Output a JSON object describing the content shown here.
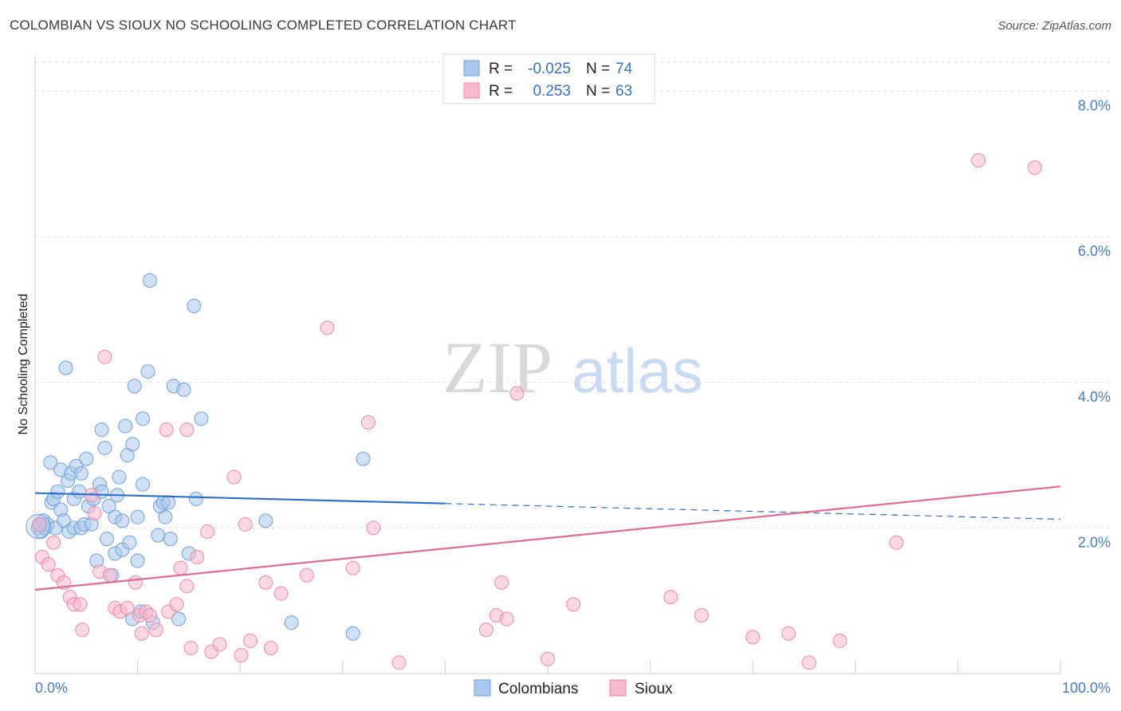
{
  "title": "COLOMBIAN VS SIOUX NO SCHOOLING COMPLETED CORRELATION CHART",
  "source": "Source: ZipAtlas.com",
  "watermark": {
    "zip": "ZIP",
    "atlas": "atlas"
  },
  "colors": {
    "colombians_fill": "#a9c8ef",
    "colombians_stroke": "#6f9fd8",
    "colombians_line": "#2a6fcf",
    "sioux_fill": "#f7b8cc",
    "sioux_stroke": "#e889a8",
    "sioux_line": "#e06a94",
    "tick": "#4a7cc7"
  },
  "legend_top": {
    "rows": [
      {
        "r_label": "R =",
        "r_value": "-0.025",
        "n_label": "N =",
        "n_value": "74"
      },
      {
        "r_label": "R =",
        "r_value": "0.253",
        "n_label": "N =",
        "n_value": "63"
      }
    ]
  },
  "legend_bottom": {
    "colombians": "Colombians",
    "sioux": "Sioux"
  },
  "chart_data": {
    "type": "scatter",
    "title": "COLOMBIAN VS SIOUX NO SCHOOLING COMPLETED CORRELATION CHART",
    "xlabel": "",
    "ylabel": "No Schooling Completed",
    "xlim": [
      0,
      100
    ],
    "ylim": [
      0,
      8.4
    ],
    "x_tick_labels": [
      "0.0%",
      "100.0%"
    ],
    "y_ticks": [
      2,
      4,
      6,
      8
    ],
    "y_tick_labels": [
      "2.0%",
      "4.0%",
      "6.0%",
      "8.0%"
    ],
    "series": [
      {
        "name": "Colombians",
        "r": -0.025,
        "n": 74,
        "trend": {
          "x0": 0,
          "y0": 2.48,
          "x1": 100,
          "y1": 2.12,
          "solid_until": 40
        },
        "points": [
          [
            0.3,
            2.0
          ],
          [
            0.5,
            2.05
          ],
          [
            0.6,
            1.95
          ],
          [
            0.8,
            2.1
          ],
          [
            1.0,
            2.0
          ],
          [
            1.2,
            2.05
          ],
          [
            1.5,
            2.9
          ],
          [
            1.6,
            2.35
          ],
          [
            1.8,
            2.4
          ],
          [
            2.0,
            2.0
          ],
          [
            2.2,
            2.5
          ],
          [
            2.5,
            2.25
          ],
          [
            2.5,
            2.8
          ],
          [
            2.8,
            2.1
          ],
          [
            3.0,
            4.2
          ],
          [
            3.2,
            2.65
          ],
          [
            3.3,
            1.95
          ],
          [
            3.5,
            2.75
          ],
          [
            3.8,
            2.0
          ],
          [
            3.8,
            2.4
          ],
          [
            4.0,
            2.85
          ],
          [
            4.3,
            2.5
          ],
          [
            4.5,
            2.75
          ],
          [
            4.5,
            2.0
          ],
          [
            4.8,
            2.05
          ],
          [
            5.0,
            2.95
          ],
          [
            5.2,
            2.3
          ],
          [
            5.5,
            2.05
          ],
          [
            5.7,
            2.4
          ],
          [
            6.0,
            1.55
          ],
          [
            6.3,
            2.6
          ],
          [
            6.5,
            2.5
          ],
          [
            6.5,
            3.35
          ],
          [
            6.8,
            3.1
          ],
          [
            7.0,
            1.85
          ],
          [
            7.2,
            2.3
          ],
          [
            7.5,
            1.35
          ],
          [
            7.8,
            1.65
          ],
          [
            7.8,
            2.15
          ],
          [
            8.0,
            2.45
          ],
          [
            8.2,
            2.7
          ],
          [
            8.5,
            2.1
          ],
          [
            8.5,
            1.7
          ],
          [
            8.8,
            3.4
          ],
          [
            9.0,
            3.0
          ],
          [
            9.2,
            1.8
          ],
          [
            9.5,
            3.15
          ],
          [
            9.5,
            0.75
          ],
          [
            9.7,
            3.95
          ],
          [
            10.0,
            2.15
          ],
          [
            10.0,
            1.55
          ],
          [
            10.3,
            0.85
          ],
          [
            10.5,
            3.5
          ],
          [
            10.5,
            2.6
          ],
          [
            11.0,
            4.15
          ],
          [
            11.2,
            5.4
          ],
          [
            11.5,
            0.7
          ],
          [
            12.0,
            1.9
          ],
          [
            12.2,
            2.3
          ],
          [
            12.5,
            2.35
          ],
          [
            12.7,
            2.15
          ],
          [
            13.0,
            2.35
          ],
          [
            13.2,
            1.85
          ],
          [
            13.5,
            3.95
          ],
          [
            14.0,
            0.75
          ],
          [
            14.5,
            3.9
          ],
          [
            15.0,
            1.65
          ],
          [
            15.5,
            5.05
          ],
          [
            15.7,
            2.4
          ],
          [
            16.2,
            3.5
          ],
          [
            22.5,
            2.1
          ],
          [
            25.0,
            0.7
          ],
          [
            31.0,
            0.55
          ],
          [
            32.0,
            2.95
          ]
        ]
      },
      {
        "name": "Sioux",
        "r": 0.253,
        "n": 63,
        "trend": {
          "x0": 0,
          "y0": 1.15,
          "x1": 100,
          "y1": 2.57
        },
        "points": [
          [
            0.4,
            2.05
          ],
          [
            0.7,
            1.6
          ],
          [
            1.3,
            1.5
          ],
          [
            1.8,
            1.8
          ],
          [
            2.2,
            1.35
          ],
          [
            2.8,
            1.25
          ],
          [
            3.4,
            1.05
          ],
          [
            3.8,
            0.95
          ],
          [
            4.4,
            0.95
          ],
          [
            4.6,
            0.6
          ],
          [
            5.5,
            2.45
          ],
          [
            5.8,
            2.2
          ],
          [
            6.3,
            1.4
          ],
          [
            6.8,
            4.35
          ],
          [
            7.3,
            1.35
          ],
          [
            7.8,
            0.9
          ],
          [
            8.3,
            0.85
          ],
          [
            9.0,
            0.9
          ],
          [
            9.8,
            1.25
          ],
          [
            10.2,
            0.8
          ],
          [
            10.4,
            0.55
          ],
          [
            10.8,
            0.85
          ],
          [
            11.2,
            0.8
          ],
          [
            11.8,
            0.6
          ],
          [
            12.8,
            3.35
          ],
          [
            13.0,
            0.85
          ],
          [
            13.8,
            0.95
          ],
          [
            14.2,
            1.45
          ],
          [
            14.8,
            3.35
          ],
          [
            14.8,
            1.2
          ],
          [
            15.2,
            0.35
          ],
          [
            15.8,
            1.6
          ],
          [
            16.8,
            1.95
          ],
          [
            17.2,
            0.3
          ],
          [
            18.0,
            0.4
          ],
          [
            19.4,
            2.7
          ],
          [
            20.1,
            0.25
          ],
          [
            20.5,
            2.05
          ],
          [
            21.0,
            0.45
          ],
          [
            22.5,
            1.25
          ],
          [
            23.0,
            0.35
          ],
          [
            24.0,
            1.1
          ],
          [
            26.5,
            1.35
          ],
          [
            28.5,
            4.75
          ],
          [
            31.0,
            1.45
          ],
          [
            32.5,
            3.45
          ],
          [
            33.0,
            2.0
          ],
          [
            35.5,
            0.15
          ],
          [
            44.0,
            0.6
          ],
          [
            45.0,
            0.8
          ],
          [
            45.5,
            1.25
          ],
          [
            46.0,
            0.75
          ],
          [
            47.0,
            3.85
          ],
          [
            50.0,
            0.2
          ],
          [
            52.5,
            0.95
          ],
          [
            62.0,
            1.05
          ],
          [
            65.0,
            0.8
          ],
          [
            70.0,
            0.5
          ],
          [
            73.5,
            0.55
          ],
          [
            75.5,
            0.15
          ],
          [
            78.5,
            0.45
          ],
          [
            84.0,
            1.8
          ],
          [
            92.0,
            7.05
          ]
        ]
      }
    ],
    "extra_sioux_points": [
      [
        97.5,
        6.95
      ]
    ]
  }
}
